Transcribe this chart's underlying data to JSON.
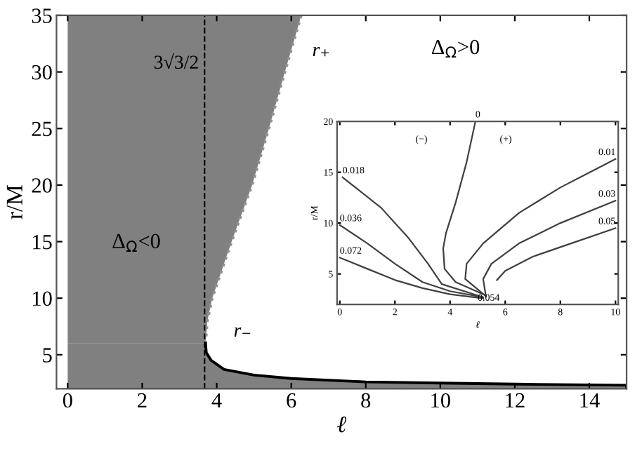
{
  "chart_data": [
    {
      "type": "area",
      "orientation": "horizontal",
      "color": "#808080",
      "xlabel": "ℓ",
      "ylabel": "r/M",
      "xlim": [
        -0.3,
        15
      ],
      "ylim": [
        2,
        35
      ],
      "xticks": [
        0,
        2,
        4,
        6,
        8,
        10,
        12,
        14
      ],
      "yticks": [
        5,
        10,
        15,
        20,
        25,
        30,
        35
      ],
      "grid": false,
      "legend": false,
      "series": [
        {
          "name": "r₊",
          "color": "#909090",
          "line_style": "dotted",
          "x": [
            6,
            8,
            10,
            15,
            20,
            25,
            30,
            35
          ],
          "values": [
            3.7,
            3.75,
            3.88,
            4.4,
            4.95,
            5.4,
            5.83,
            6.27
          ]
        },
        {
          "name": "r₋",
          "color": "#000000",
          "line_style": "solid",
          "x": [
            2,
            2.3,
            2.4,
            2.5,
            2.6,
            2.9,
            3.2,
            3.7,
            4.5,
            5.2,
            6
          ],
          "values": [
            15,
            15,
            12,
            10,
            8,
            6,
            5,
            4.2,
            3.85,
            3.72,
            3.7
          ]
        }
      ],
      "ref_lines": [
        {
          "axis": "x",
          "value": 3.674,
          "label": "3√3/2",
          "line_style": "dashed",
          "color": "#000000"
        }
      ],
      "annotations": [
        "Δ$_{Ω}$<0",
        "Δ$_{Ω}$>0"
      ]
    },
    {
      "type": "line",
      "xlabel": "ℓ",
      "ylabel": "r/M",
      "xlim": [
        -0.1,
        10.1
      ],
      "ylim": [
        2,
        20
      ],
      "xticks": [
        0,
        2,
        4,
        6,
        8,
        10
      ],
      "yticks": [
        5,
        10,
        15,
        20
      ],
      "grid": false,
      "legend": false,
      "series": [
        {
          "name": "0",
          "color": "#404040",
          "x": [
            4.92,
            4.6,
            4.2,
            3.85,
            3.75,
            3.8,
            4.2,
            5.2
          ],
          "values": [
            20,
            16,
            12,
            9,
            7.5,
            5.5,
            4.2,
            3.0
          ]
        },
        {
          "name": "0.018",
          "color": "#404040",
          "x": [
            0.1,
            1.5,
            2.5,
            3.2,
            3.7,
            5.2
          ],
          "values": [
            14.5,
            11.5,
            8.5,
            6,
            4,
            2.7
          ]
        },
        {
          "name": "0.036",
          "color": "#404040",
          "x": [
            0,
            1,
            2,
            3,
            4,
            5.2
          ],
          "values": [
            9.8,
            8,
            6,
            4.2,
            3.3,
            2.7
          ]
        },
        {
          "name": "0.072",
          "color": "#404040",
          "x": [
            0,
            1,
            2,
            3,
            4,
            5.2
          ],
          "values": [
            6.6,
            5.5,
            4.4,
            3.6,
            3.0,
            2.6
          ]
        },
        {
          "name": "0.01",
          "color": "#404040",
          "x": [
            5.3,
            4.55,
            4.6,
            5.2,
            6.5,
            8,
            10
          ],
          "values": [
            2.8,
            4.5,
            6,
            8,
            11,
            13.5,
            16.3
          ]
        },
        {
          "name": "0.03",
          "color": "#404040",
          "x": [
            5.3,
            5.2,
            5.5,
            6.5,
            8,
            10
          ],
          "values": [
            2.8,
            4.5,
            6,
            8,
            10,
            12.2
          ]
        },
        {
          "name": "0.05",
          "color": "#404040",
          "x": [
            5.7,
            6,
            7,
            8.5,
            10
          ],
          "values": [
            4.4,
            5.3,
            6.7,
            8.1,
            9.5
          ]
        }
      ],
      "annotations": [
        {
          "text": "0.054",
          "x": 5.4,
          "y": 2.6
        },
        "(−)",
        "(+)"
      ]
    }
  ]
}
